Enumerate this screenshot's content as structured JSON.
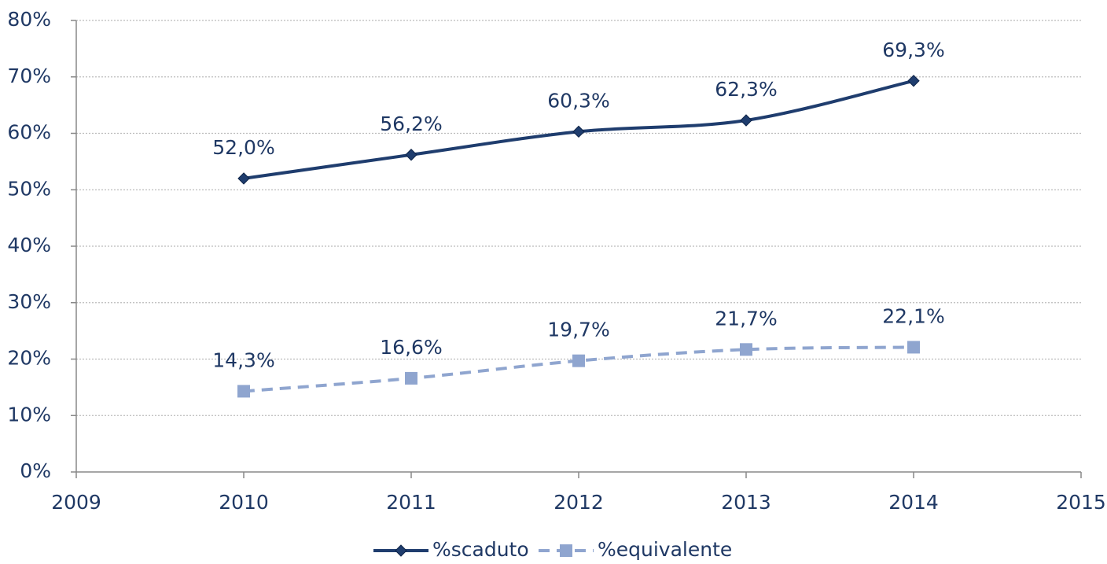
{
  "chart_data": {
    "type": "line",
    "x": [
      2010,
      2011,
      2012,
      2013,
      2014
    ],
    "series": [
      {
        "name": "%scaduto",
        "color": "#1f3d6e",
        "marker": "diamond",
        "dash": false,
        "values": [
          52.0,
          56.2,
          60.3,
          62.3,
          69.3
        ],
        "value_labels": [
          "52,0%",
          "56,2%",
          "60,3%",
          "62,3%",
          "69,3%"
        ]
      },
      {
        "name": "%equivalente",
        "color": "#8fa5cf",
        "marker": "square",
        "dash": true,
        "values": [
          14.3,
          16.6,
          19.7,
          21.7,
          22.1
        ],
        "value_labels": [
          "14,3%",
          "16,6%",
          "19,7%",
          "21,7%",
          "22,1%"
        ]
      }
    ],
    "xlim": [
      2009,
      2015
    ],
    "xticks": [
      2009,
      2010,
      2011,
      2012,
      2013,
      2014,
      2015
    ],
    "ylim": [
      0,
      80
    ],
    "yticks": [
      {
        "value": 0,
        "label": "0%"
      },
      {
        "value": 10,
        "label": "10%"
      },
      {
        "value": 20,
        "label": "20%"
      },
      {
        "value": 30,
        "label": "30%"
      },
      {
        "value": 40,
        "label": "40%"
      },
      {
        "value": 50,
        "label": "50%"
      },
      {
        "value": 60,
        "label": "60%"
      },
      {
        "value": 70,
        "label": "70%"
      },
      {
        "value": 80,
        "label": "80%"
      }
    ],
    "grid": true,
    "smooth": true,
    "legend": "bottom"
  }
}
